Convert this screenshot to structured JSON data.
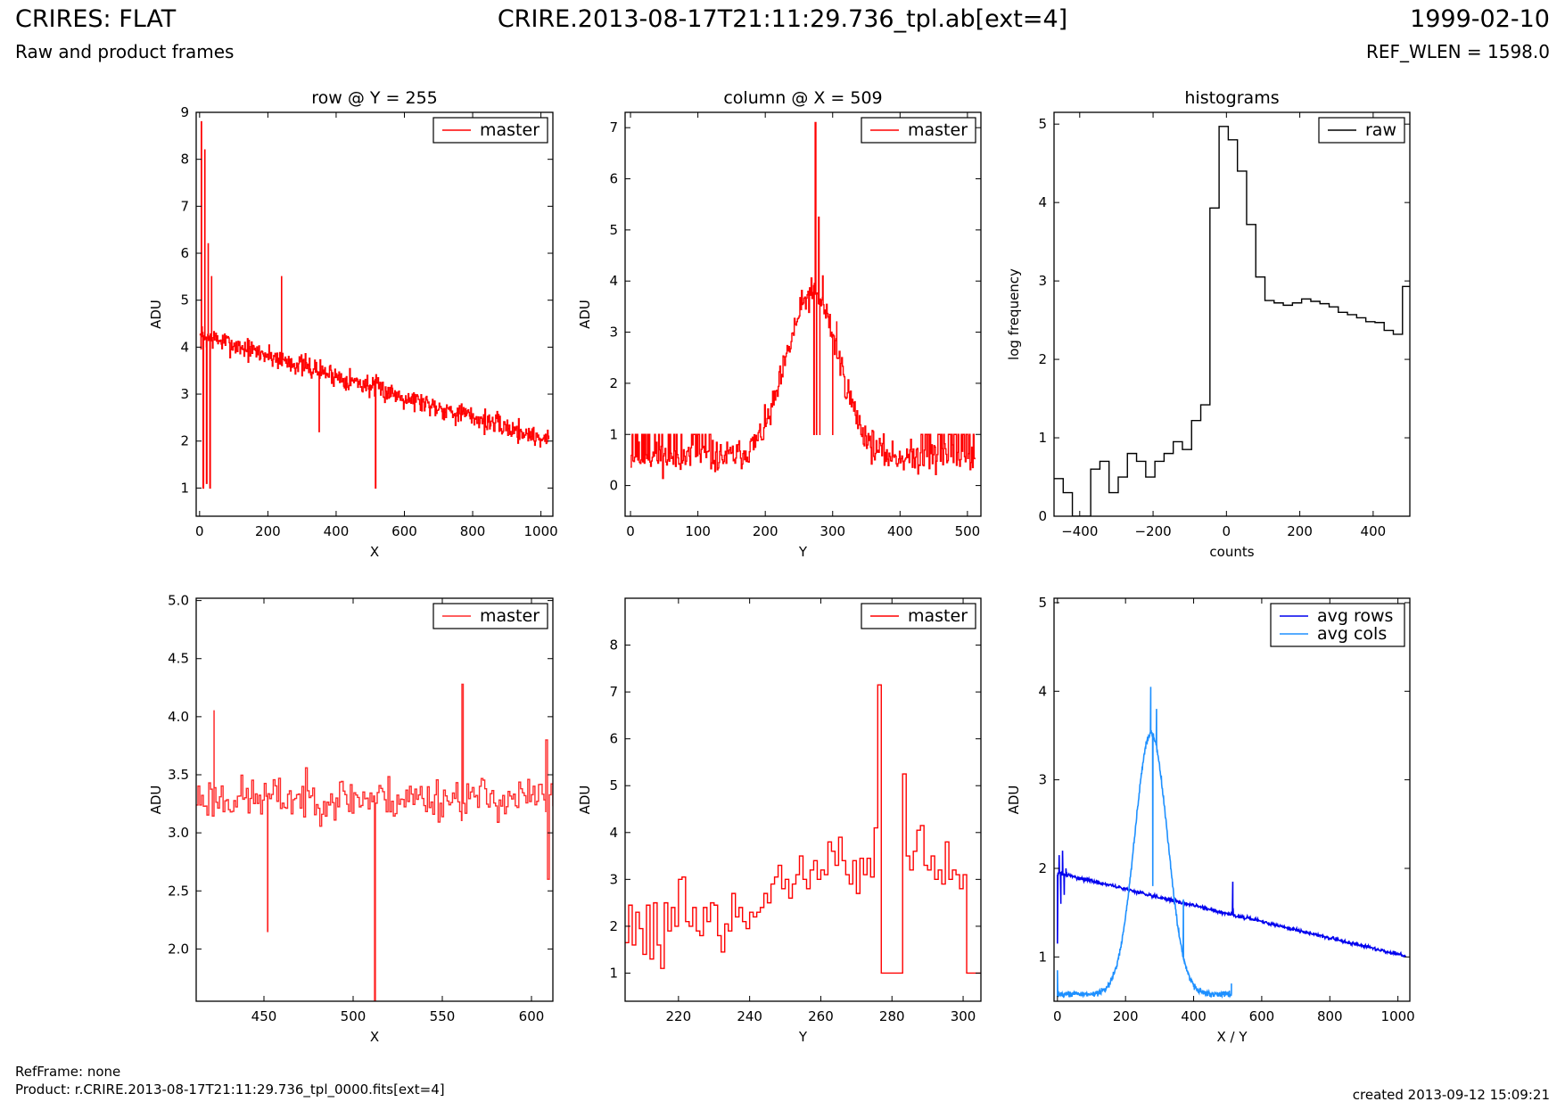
{
  "header": {
    "title_left": "CRIRES: FLAT",
    "subtitle_left": "Raw and product frames",
    "title_center": "CRIRE.2013-08-17T21:11:29.736_tpl.ab[ext=4]",
    "title_right": "1999-02-10",
    "subtitle_right": "REF_WLEN = 1598.0"
  },
  "footer": {
    "refframe": "RefFrame: none",
    "product": "Product: r.CRIRE.2013-08-17T21:11:29.736_tpl_0000.fits[ext=4]",
    "created": "created 2013-09-12 15:09:21"
  },
  "chart_data": [
    {
      "id": "p1",
      "type": "line",
      "step": true,
      "title": "row @ Y = 255",
      "xlabel": "X",
      "ylabel": "ADU",
      "xlim": [
        -10,
        1035
      ],
      "ylim": [
        0.4,
        9.0
      ],
      "xticks": [
        0,
        200,
        400,
        600,
        800,
        1000
      ],
      "yticks": [
        1,
        2,
        3,
        4,
        5,
        6,
        7,
        8,
        9
      ],
      "legend": "top-right",
      "series": [
        {
          "name": "master",
          "color": "#ff0000",
          "gen": {
            "kind": "row",
            "x0": 0,
            "x1": 1023,
            "n": 520,
            "seed": 7
          },
          "points": [
            [
              5,
              8.8
            ],
            [
              10,
              1.0
            ],
            [
              15,
              8.2
            ],
            [
              20,
              1.1
            ],
            [
              25,
              6.2
            ],
            [
              30,
              1.0
            ],
            [
              35,
              5.5
            ],
            [
              240,
              5.5
            ],
            [
              515,
              1.0
            ],
            [
              350,
              2.2
            ]
          ]
        }
      ]
    },
    {
      "id": "p2",
      "type": "line",
      "step": true,
      "title": "column @ X = 509",
      "xlabel": "Y",
      "ylabel": "ADU",
      "xlim": [
        -8,
        520
      ],
      "ylim": [
        -0.6,
        7.3
      ],
      "xticks": [
        0,
        100,
        200,
        300,
        400,
        500
      ],
      "yticks": [
        0,
        1,
        2,
        3,
        4,
        5,
        6,
        7
      ],
      "legend": "top-right",
      "series": [
        {
          "name": "master",
          "color": "#ff0000",
          "gen": {
            "kind": "col",
            "x0": 0,
            "x1": 511,
            "n": 430,
            "seed": 11
          },
          "points": [
            [
              272,
              1.0
            ],
            [
              274,
              7.1
            ],
            [
              276,
              1.0
            ],
            [
              279,
              5.25
            ],
            [
              281,
              1.0
            ],
            [
              285,
              4.1
            ],
            [
              300,
              1.0
            ],
            [
              306,
              3.2
            ]
          ]
        }
      ]
    },
    {
      "id": "p3",
      "type": "line",
      "step": true,
      "title": "histograms",
      "xlabel": "counts",
      "ylabel": "log frequency",
      "xlim": [
        -470,
        500
      ],
      "ylim": [
        0,
        5.15
      ],
      "xticks": [
        -400,
        -200,
        0,
        200,
        400
      ],
      "yticks": [
        0,
        1,
        2,
        3,
        4,
        5
      ],
      "legend": "top-right",
      "series": [
        {
          "name": "raw",
          "color": "#000000",
          "x": [
            -470,
            -445,
            -420,
            -395,
            -370,
            -345,
            -320,
            -295,
            -270,
            -245,
            -220,
            -195,
            -170,
            -145,
            -120,
            -95,
            -70,
            -45,
            -20,
            5,
            30,
            55,
            80,
            105,
            130,
            155,
            180,
            205,
            230,
            255,
            280,
            305,
            330,
            355,
            380,
            405,
            430,
            455,
            480,
            500
          ],
          "y": [
            0.48,
            0.3,
            0.0,
            0.0,
            0.6,
            0.7,
            0.3,
            0.5,
            0.8,
            0.7,
            0.5,
            0.7,
            0.8,
            0.95,
            0.85,
            1.22,
            1.42,
            3.93,
            4.97,
            4.8,
            4.4,
            3.72,
            3.05,
            2.75,
            2.72,
            2.69,
            2.72,
            2.77,
            2.74,
            2.71,
            2.67,
            2.6,
            2.57,
            2.53,
            2.48,
            2.47,
            2.37,
            2.32,
            2.93,
            2.93
          ]
        }
      ]
    },
    {
      "id": "p4",
      "type": "line",
      "step": true,
      "title": "",
      "xlabel": "X",
      "ylabel": "ADU",
      "xlim": [
        412,
        612
      ],
      "ylim": [
        1.55,
        5.02
      ],
      "xticks": [
        450,
        500,
        550,
        600
      ],
      "yticks": [
        2.0,
        2.5,
        3.0,
        3.5,
        4.0,
        4.5,
        5.0
      ],
      "legend": "top-right",
      "series": [
        {
          "name": "master",
          "color": "#ff2a2a",
          "gen": {
            "kind": "zoomrow",
            "x0": 412,
            "x1": 612,
            "n": 200,
            "seed": 23
          },
          "points": [
            [
              422,
              4.05
            ],
            [
              452,
              2.15
            ],
            [
              512,
              1.55
            ],
            [
              561,
              4.28
            ],
            [
              608,
              3.8
            ],
            [
              609,
              2.6
            ]
          ]
        }
      ]
    },
    {
      "id": "p5",
      "type": "line",
      "step": true,
      "title": "",
      "xlabel": "Y",
      "ylabel": "ADU",
      "xlim": [
        205,
        305
      ],
      "ylim": [
        0.4,
        9.0
      ],
      "xticks": [
        220,
        240,
        260,
        280,
        300
      ],
      "yticks": [
        1,
        2,
        3,
        4,
        5,
        6,
        7,
        8
      ],
      "legend": "top-right",
      "series": [
        {
          "name": "master",
          "color": "#ff0000",
          "x": [
            205,
            206,
            207,
            208,
            209,
            210,
            211,
            212,
            213,
            214,
            215,
            216,
            217,
            218,
            219,
            220,
            221,
            222,
            223,
            224,
            225,
            226,
            227,
            228,
            229,
            230,
            231,
            232,
            233,
            234,
            235,
            236,
            237,
            238,
            239,
            240,
            241,
            242,
            243,
            244,
            245,
            246,
            247,
            248,
            249,
            250,
            251,
            252,
            253,
            254,
            255,
            256,
            257,
            258,
            259,
            260,
            261,
            262,
            263,
            264,
            265,
            266,
            267,
            268,
            269,
            270,
            271,
            272,
            273,
            274,
            275,
            276,
            277,
            278,
            279,
            280,
            281,
            282,
            283,
            284,
            285,
            286,
            287,
            288,
            289,
            290,
            291,
            292,
            293,
            294,
            295,
            296,
            297,
            298,
            299,
            300,
            301,
            302,
            303,
            304,
            305
          ],
          "y": [
            1.65,
            2.45,
            1.6,
            2.3,
            1.95,
            1.4,
            2.45,
            1.3,
            2.5,
            1.6,
            1.1,
            2.5,
            1.9,
            2.4,
            2.0,
            3.0,
            3.05,
            2.1,
            2.0,
            2.4,
            1.9,
            1.8,
            2.4,
            2.1,
            2.5,
            2.45,
            1.8,
            1.45,
            2.05,
            1.9,
            2.7,
            2.2,
            2.4,
            2.1,
            1.95,
            2.3,
            2.2,
            2.3,
            2.4,
            2.7,
            2.5,
            2.9,
            3.05,
            3.3,
            2.8,
            3.0,
            2.6,
            2.9,
            3.1,
            3.5,
            3.0,
            2.8,
            3.2,
            3.4,
            3.0,
            3.2,
            3.1,
            3.8,
            3.6,
            3.3,
            3.9,
            3.4,
            3.1,
            2.9,
            3.4,
            2.7,
            3.45,
            3.1,
            3.45,
            3.05,
            4.1,
            7.15,
            1.0,
            1.0,
            1.0,
            1.0,
            1.0,
            1.0,
            5.25,
            3.5,
            3.2,
            3.6,
            4.05,
            4.15,
            3.3,
            3.2,
            3.5,
            3.0,
            3.2,
            2.9,
            3.8,
            3.0,
            3.2,
            3.1,
            2.8,
            3.1,
            1.0,
            1.0,
            1.0,
            1.0,
            1.0
          ]
        }
      ]
    },
    {
      "id": "p6",
      "type": "line",
      "step": false,
      "title": "",
      "xlabel": "X / Y",
      "ylabel": "ADU",
      "xlim": [
        -10,
        1035
      ],
      "ylim": [
        0.5,
        5.05
      ],
      "xticks": [
        0,
        200,
        400,
        600,
        800,
        1000
      ],
      "yticks": [
        1,
        2,
        3,
        4,
        5
      ],
      "legend": "top-right",
      "series": [
        {
          "name": "avg rows",
          "color": "#0000ee",
          "gen": {
            "kind": "avgrow",
            "x0": 0,
            "x1": 1023,
            "n": 700,
            "seed": 31
          },
          "points": [
            [
              0,
              1.15
            ],
            [
              5,
              2.15
            ],
            [
              10,
              1.6
            ],
            [
              15,
              2.2
            ],
            [
              20,
              1.7
            ],
            [
              25,
              2.0
            ],
            [
              514,
              1.55
            ],
            [
              515,
              1.85
            ],
            [
              516,
              1.55
            ]
          ]
        },
        {
          "name": "avg cols",
          "color": "#1e90ff",
          "gen": {
            "kind": "avgcol",
            "x0": 0,
            "x1": 511,
            "n": 480,
            "seed": 43
          },
          "points": [
            [
              0,
              0.85
            ],
            [
              2,
              0.62
            ],
            [
              274,
              4.05
            ],
            [
              280,
              1.8
            ],
            [
              291,
              3.8
            ],
            [
              305,
              3.0
            ],
            [
              370,
              1.65
            ],
            [
              505,
              0.62
            ],
            [
              511,
              0.7
            ]
          ]
        }
      ]
    }
  ]
}
